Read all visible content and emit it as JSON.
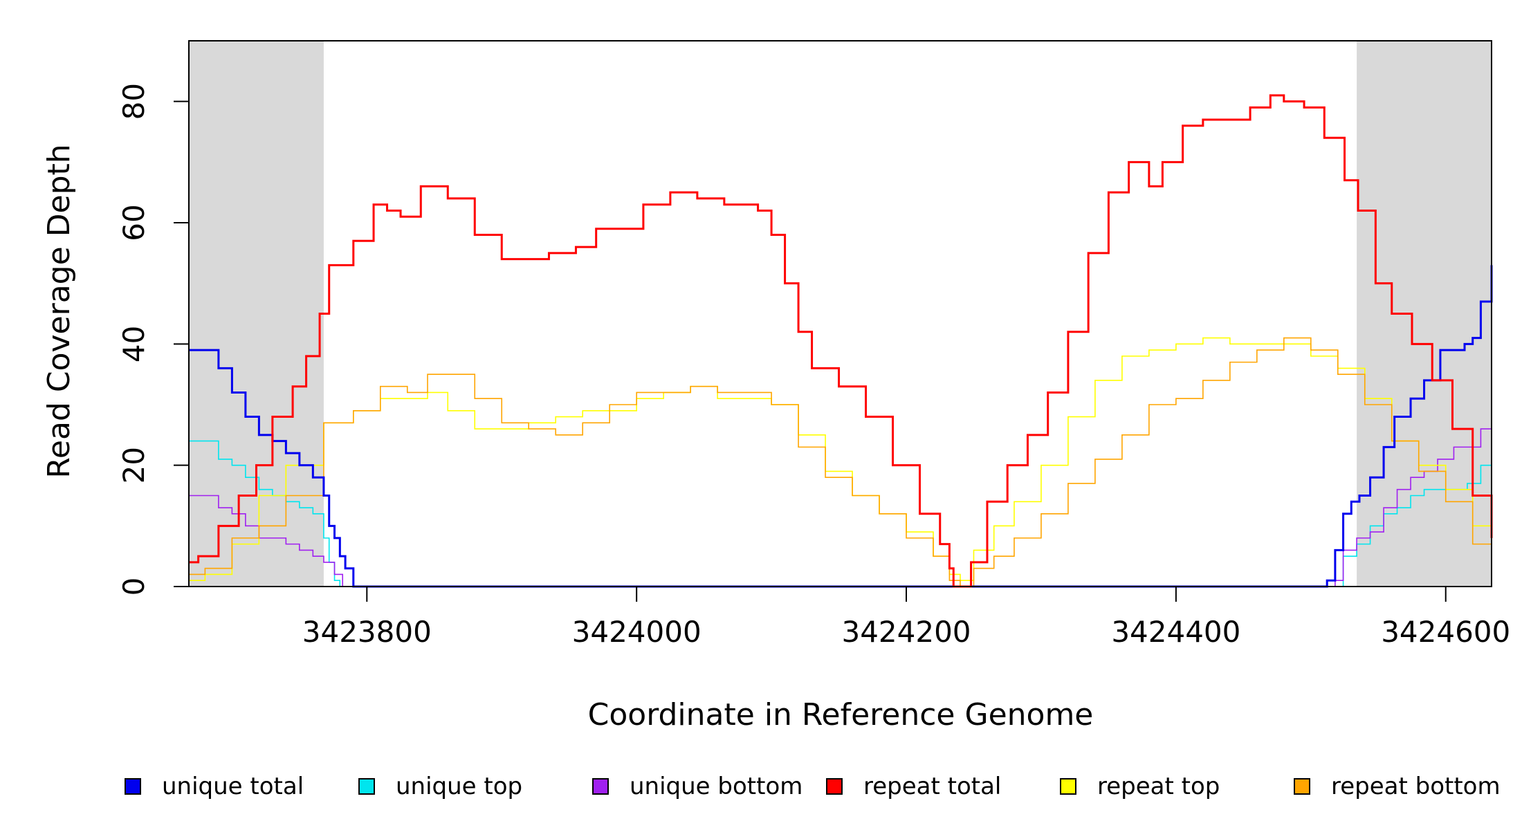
{
  "chart_data": {
    "type": "line",
    "title": "",
    "xlabel": "Coordinate in Reference Genome",
    "ylabel": "Read Coverage Depth",
    "xlim": [
      3423668,
      3424634
    ],
    "ylim": [
      0,
      90
    ],
    "xticks": [
      3423800,
      3424000,
      3424200,
      3424400,
      3424600
    ],
    "xtick_labels": [
      "3423800",
      "3424000",
      "3424200",
      "3424400",
      "3424600"
    ],
    "yticks": [
      0,
      20,
      40,
      60,
      80
    ],
    "ytick_labels": [
      "0",
      "20",
      "40",
      "60",
      "80"
    ],
    "shaded_regions": [
      [
        3423668,
        3423768
      ],
      [
        3424534,
        3424634
      ]
    ],
    "series": [
      {
        "name": "unique total",
        "color": "#0000ee",
        "x": [
          3423668,
          3423678,
          3423690,
          3423700,
          3423710,
          3423720,
          3423730,
          3423740,
          3423750,
          3423760,
          3423768,
          3423772,
          3423776,
          3423780,
          3423784,
          3423790,
          3424500,
          3424512,
          3424518,
          3424524,
          3424530,
          3424536,
          3424544,
          3424554,
          3424562,
          3424574,
          3424584,
          3424596,
          3424606,
          3424614,
          3424620,
          3424626,
          3424634
        ],
        "y": [
          39,
          39,
          36,
          32,
          28,
          25,
          24,
          22,
          20,
          18,
          15,
          10,
          8,
          5,
          3,
          0,
          0,
          1,
          6,
          12,
          14,
          15,
          18,
          23,
          28,
          31,
          34,
          39,
          39,
          40,
          41,
          47,
          53
        ]
      },
      {
        "name": "unique top",
        "color": "#00e5ee",
        "x": [
          3423668,
          3423678,
          3423690,
          3423700,
          3423710,
          3423720,
          3423730,
          3423740,
          3423750,
          3423760,
          3423768,
          3423772,
          3423776,
          3423780,
          3424500,
          3424518,
          3424524,
          3424534,
          3424544,
          3424554,
          3424564,
          3424574,
          3424584,
          3424594,
          3424606,
          3424616,
          3424626,
          3424634
        ],
        "y": [
          24,
          24,
          21,
          20,
          18,
          16,
          15,
          14,
          13,
          12,
          8,
          4,
          1,
          0,
          0,
          0,
          5,
          7,
          10,
          12,
          13,
          15,
          16,
          16,
          16,
          17,
          20,
          25
        ]
      },
      {
        "name": "unique bottom",
        "color": "#a020f0",
        "x": [
          3423668,
          3423678,
          3423690,
          3423700,
          3423710,
          3423720,
          3423730,
          3423740,
          3423750,
          3423760,
          3423768,
          3423776,
          3423782,
          3424510,
          3424518,
          3424524,
          3424534,
          3424544,
          3424554,
          3424564,
          3424574,
          3424584,
          3424594,
          3424606,
          3424616,
          3424626,
          3424634
        ],
        "y": [
          15,
          15,
          13,
          12,
          10,
          8,
          8,
          7,
          6,
          5,
          4,
          2,
          0,
          0,
          1,
          6,
          8,
          9,
          13,
          16,
          18,
          19,
          21,
          23,
          23,
          26,
          28
        ]
      },
      {
        "name": "repeat total",
        "color": "#ff0000",
        "x": [
          3423668,
          3423675,
          3423690,
          3423705,
          3423718,
          3423730,
          3423745,
          3423755,
          3423765,
          3423772,
          3423790,
          3423805,
          3423815,
          3423825,
          3423840,
          3423860,
          3423880,
          3423900,
          3423915,
          3423935,
          3423955,
          3423970,
          3423985,
          3424005,
          3424025,
          3424045,
          3424065,
          3424080,
          3424090,
          3424100,
          3424110,
          3424120,
          3424130,
          3424140,
          3424150,
          3424170,
          3424190,
          3424210,
          3424225,
          3424232,
          3424235,
          3424240,
          3424248,
          3424260,
          3424275,
          3424290,
          3424305,
          3424320,
          3424335,
          3424350,
          3424365,
          3424380,
          3424390,
          3424405,
          3424420,
          3424440,
          3424455,
          3424470,
          3424480,
          3424495,
          3424510,
          3424525,
          3424535,
          3424548,
          3424560,
          3424575,
          3424590,
          3424605,
          3424620,
          3424634
        ],
        "y": [
          4,
          5,
          10,
          15,
          20,
          28,
          33,
          38,
          45,
          53,
          57,
          63,
          62,
          61,
          66,
          64,
          58,
          54,
          54,
          55,
          56,
          59,
          59,
          63,
          65,
          64,
          63,
          63,
          62,
          58,
          50,
          42,
          36,
          36,
          33,
          28,
          20,
          12,
          7,
          3,
          0,
          0,
          4,
          14,
          20,
          25,
          32,
          42,
          55,
          65,
          70,
          66,
          70,
          76,
          77,
          77,
          79,
          81,
          80,
          79,
          74,
          67,
          62,
          50,
          45,
          40,
          34,
          26,
          15,
          8
        ]
      },
      {
        "name": "repeat top",
        "color": "#ffff00",
        "x": [
          3423668,
          3423680,
          3423700,
          3423720,
          3423740,
          3423768,
          3423790,
          3423810,
          3423830,
          3423845,
          3423860,
          3423880,
          3423900,
          3423920,
          3423940,
          3423960,
          3423980,
          3424000,
          3424020,
          3424040,
          3424060,
          3424080,
          3424100,
          3424120,
          3424140,
          3424160,
          3424180,
          3424200,
          3424220,
          3424232,
          3424240,
          3424250,
          3424265,
          3424280,
          3424300,
          3424320,
          3424340,
          3424360,
          3424380,
          3424400,
          3424420,
          3424440,
          3424460,
          3424480,
          3424500,
          3424520,
          3424540,
          3424560,
          3424580,
          3424600,
          3424620,
          3424634
        ],
        "y": [
          1,
          2,
          7,
          15,
          20,
          27,
          29,
          31,
          31,
          32,
          29,
          26,
          26,
          27,
          28,
          29,
          29,
          31,
          32,
          33,
          31,
          31,
          30,
          25,
          19,
          15,
          12,
          9,
          5,
          2,
          1,
          6,
          10,
          14,
          20,
          28,
          34,
          38,
          39,
          40,
          41,
          40,
          40,
          40,
          38,
          36,
          31,
          24,
          20,
          16,
          10,
          5
        ]
      },
      {
        "name": "repeat bottom",
        "color": "#ffa500",
        "x": [
          3423668,
          3423680,
          3423700,
          3423720,
          3423740,
          3423768,
          3423790,
          3423810,
          3423830,
          3423845,
          3423860,
          3423880,
          3423900,
          3423920,
          3423940,
          3423960,
          3423980,
          3424000,
          3424020,
          3424040,
          3424060,
          3424080,
          3424100,
          3424120,
          3424140,
          3424160,
          3424180,
          3424200,
          3424220,
          3424232,
          3424240,
          3424250,
          3424265,
          3424280,
          3424300,
          3424320,
          3424340,
          3424360,
          3424380,
          3424400,
          3424420,
          3424440,
          3424460,
          3424480,
          3424500,
          3424520,
          3424540,
          3424560,
          3424580,
          3424600,
          3424620,
          3424634
        ],
        "y": [
          2,
          3,
          8,
          10,
          15,
          27,
          29,
          33,
          32,
          35,
          35,
          31,
          27,
          26,
          25,
          27,
          30,
          32,
          32,
          33,
          32,
          32,
          30,
          23,
          18,
          15,
          12,
          8,
          5,
          1,
          0,
          3,
          5,
          8,
          12,
          17,
          21,
          25,
          30,
          31,
          34,
          37,
          39,
          41,
          39,
          35,
          30,
          24,
          19,
          14,
          7,
          4
        ]
      }
    ]
  }
}
